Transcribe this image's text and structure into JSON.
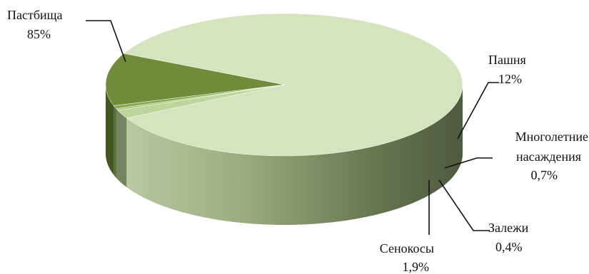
{
  "chart_data": {
    "type": "pie",
    "style": "3d",
    "slices": [
      {
        "name": "Пастбища",
        "percent_label": "85%",
        "value": 85.0,
        "color": "#d5e3bf"
      },
      {
        "name": "Пашня",
        "percent_label": "12%",
        "value": 12.0,
        "color": "#6f8b3b"
      },
      {
        "name": "Многолетние насаждения",
        "name_lines": [
          "Многолетние",
          "насаждения"
        ],
        "percent_label": "0,7%",
        "value": 0.7,
        "color": "#89a94e"
      },
      {
        "name": "Залежи",
        "percent_label": "0,4%",
        "value": 0.4,
        "color": "#a9c57a"
      },
      {
        "name": "Сенокосы",
        "percent_label": "1,9%",
        "value": 1.9,
        "color": "#bcd59a"
      }
    ],
    "legend": "none",
    "labels": "outside with leader lines"
  }
}
